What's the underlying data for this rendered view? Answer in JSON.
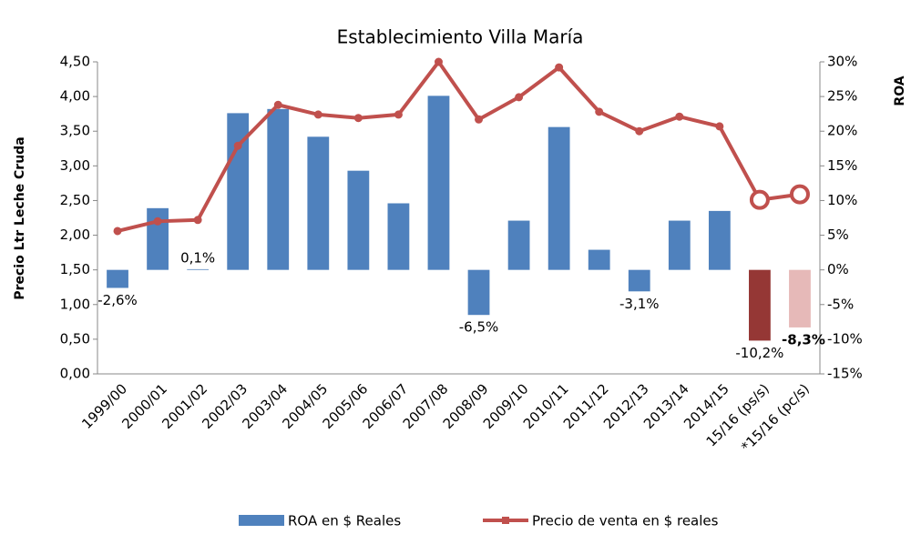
{
  "chart_data": {
    "type": "bar-line",
    "title": "Establecimiento Villa María",
    "y_label": "Precio Ltr Leche Cruda",
    "y2_label": "ROA",
    "categories": [
      "1999/00",
      "2000/01",
      "2001/02",
      "2002/03",
      "2003/04",
      "2004/05",
      "2005/06",
      "2006/07",
      "2007/08",
      "2008/09",
      "2009/10",
      "2010/11",
      "2011/12",
      "2012/13",
      "2013/14",
      "2014/15",
      "15/16 (ps/s)",
      "*15/16 (pc/s)"
    ],
    "series": [
      {
        "name": "ROA en $ Reales",
        "type": "bar",
        "axis": "y2",
        "color": "#4f81bd",
        "colors": [
          "#4f81bd",
          "#4f81bd",
          "#4f81bd",
          "#4f81bd",
          "#4f81bd",
          "#4f81bd",
          "#4f81bd",
          "#4f81bd",
          "#4f81bd",
          "#4f81bd",
          "#4f81bd",
          "#4f81bd",
          "#4f81bd",
          "#4f81bd",
          "#4f81bd",
          "#4f81bd",
          "#953735",
          "#e6b9b8"
        ],
        "values": [
          -2.6,
          8.9,
          0.1,
          22.6,
          23.2,
          19.2,
          14.3,
          9.6,
          25.1,
          -6.5,
          7.1,
          20.6,
          2.9,
          -3.1,
          7.1,
          8.5,
          -10.2,
          -8.3
        ],
        "value_labels": [
          "-2,6%",
          null,
          "0,1%",
          null,
          null,
          null,
          null,
          null,
          null,
          "-6,5%",
          null,
          null,
          null,
          "-3,1%",
          null,
          null,
          "-10,2%",
          "-8,3%"
        ]
      },
      {
        "name": "Precio de venta en $ reales",
        "type": "line",
        "color": "#c0504d",
        "values": [
          2.06,
          2.2,
          2.22,
          3.29,
          3.88,
          3.74,
          3.69,
          3.74,
          4.5,
          3.67,
          3.99,
          4.42,
          3.78,
          3.5,
          3.71,
          3.57,
          2.51,
          2.59
        ]
      }
    ],
    "ylim": [
      0,
      4.5
    ],
    "yticks": [
      {
        "value": 0,
        "label": "0,00"
      },
      {
        "value": 0.5,
        "label": "0,50"
      },
      {
        "value": 1,
        "label": "1,00"
      },
      {
        "value": 1.5,
        "label": "1,50"
      },
      {
        "value": 2,
        "label": "2,00"
      },
      {
        "value": 2.5,
        "label": "2,50"
      },
      {
        "value": 3,
        "label": "3,00"
      },
      {
        "value": 3.5,
        "label": "3,50"
      },
      {
        "value": 4,
        "label": "4,00"
      },
      {
        "value": 4.5,
        "label": "4,50"
      }
    ],
    "y2lim": [
      -15,
      30
    ],
    "y2ticks": [
      {
        "value": -15,
        "label": "-15%"
      },
      {
        "value": -10,
        "label": "-10%"
      },
      {
        "value": -5,
        "label": "-5%"
      },
      {
        "value": 0,
        "label": "0%"
      },
      {
        "value": 5,
        "label": "5%"
      },
      {
        "value": 10,
        "label": "10%"
      },
      {
        "value": 15,
        "label": "15%"
      },
      {
        "value": 20,
        "label": "20%"
      },
      {
        "value": 25,
        "label": "25%"
      },
      {
        "value": 30,
        "label": "30%"
      }
    ],
    "grid": false,
    "legend": "bottom"
  }
}
